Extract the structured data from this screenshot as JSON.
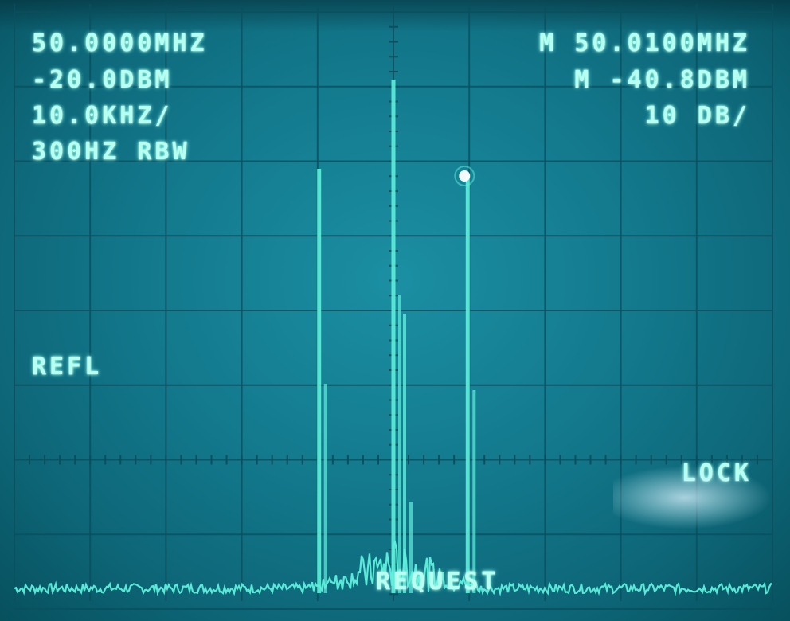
{
  "readouts": {
    "center_freq": "50.0000MHZ",
    "ref_level": "-20.0DBM",
    "span_per_div": "10.0KHZ/",
    "rbw": "300HZ RBW",
    "marker_freq": "M 50.0100MHZ",
    "marker_level": "M -40.8DBM",
    "scale": "10 DB/"
  },
  "status": {
    "mode": "REFL",
    "lock": "LOCK",
    "request": "REQUEST"
  },
  "colors": {
    "trace": "#5ff0dc",
    "text": "#b8fff2",
    "grid": "#0b4f5e",
    "marker": "#ffffff"
  },
  "chart_data": {
    "type": "line",
    "xlabel": "",
    "ylabel": "",
    "grid": true,
    "peaks_division_offsets": [
      -1,
      0,
      1
    ],
    "peak_levels_dbm": [
      -38,
      -20,
      -40.8
    ],
    "marker": {
      "freq": "50.0100MHZ",
      "level_dbm": -40.8
    }
  }
}
